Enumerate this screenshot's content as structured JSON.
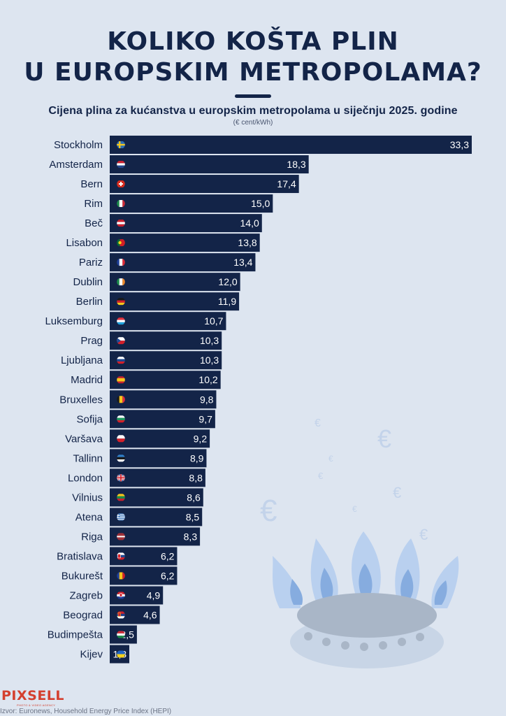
{
  "title": {
    "line1": "KOLIKO KOŠTA PLIN",
    "line2": "U EUROPSKIM METROPOLAMA?"
  },
  "subtitle": "Cijena plina za kućanstva u europskim metropolama u siječnju 2025. godine",
  "unit": "(€ cent/kWh)",
  "logo": {
    "name": "PIXSELL",
    "tagline": "PHOTO & VIDEO AGENCY"
  },
  "source": "Izvor: Euronews, Household Energy Price Index (HEPI)",
  "colors": {
    "bar": "#132448",
    "background": "#dde5f0",
    "accent": "#d4402f"
  },
  "chart_data": {
    "type": "bar",
    "orientation": "horizontal",
    "title": "Cijena plina za kućanstva u europskim metropolama u siječnju 2025. godine",
    "unit": "(€ cent/kWh)",
    "categories": [
      "Stockholm",
      "Amsterdam",
      "Bern",
      "Rim",
      "Beč",
      "Lisabon",
      "Pariz",
      "Dublin",
      "Berlin",
      "Luksemburg",
      "Prag",
      "Ljubljana",
      "Madrid",
      "Bruxelles",
      "Sofija",
      "Varšava",
      "Tallinn",
      "London",
      "Vilnius",
      "Atena",
      "Riga",
      "Bratislava",
      "Bukurešt",
      "Zagreb",
      "Beograd",
      "Budimpešta",
      "Kijev"
    ],
    "values": [
      33.3,
      18.3,
      17.4,
      15.0,
      14.0,
      13.8,
      13.4,
      12.0,
      11.9,
      10.7,
      10.3,
      10.3,
      10.2,
      9.8,
      9.7,
      9.2,
      8.9,
      8.8,
      8.6,
      8.5,
      8.3,
      6.2,
      6.2,
      4.9,
      4.6,
      2.5,
      1.8
    ],
    "value_labels": [
      "33,3",
      "18,3",
      "17,4",
      "15,0",
      "14,0",
      "13,8",
      "13,4",
      "12,0",
      "11,9",
      "10,7",
      "10,3",
      "10,3",
      "10,2",
      "9,8",
      "9,7",
      "9,2",
      "8,9",
      "8,8",
      "8,6",
      "8,5",
      "8,3",
      "6,2",
      "6,2",
      "4,9",
      "4,6",
      "2,5",
      "1,8"
    ],
    "flags": [
      "sweden-flag",
      "netherlands-flag",
      "switzerland-flag",
      "italy-flag",
      "austria-flag",
      "portugal-flag",
      "france-flag",
      "ireland-flag",
      "germany-flag",
      "luxembourg-flag",
      "czechia-flag",
      "slovenia-flag",
      "spain-flag",
      "belgium-flag",
      "bulgaria-flag",
      "poland-flag",
      "estonia-flag",
      "uk-flag",
      "lithuania-flag",
      "greece-flag",
      "latvia-flag",
      "slovakia-flag",
      "romania-flag",
      "croatia-flag",
      "serbia-flag",
      "hungary-flag",
      "ukraine-flag"
    ],
    "xlim": [
      0,
      33.3
    ],
    "grid": false,
    "legend": "none"
  }
}
